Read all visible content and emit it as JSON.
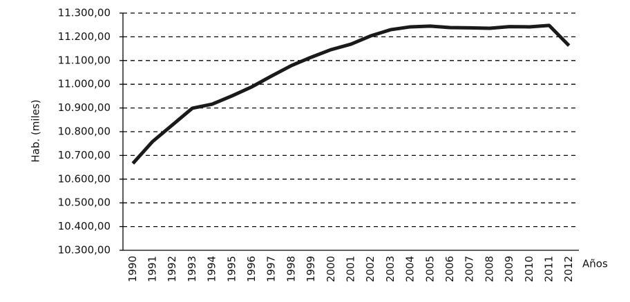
{
  "chart_data": {
    "type": "line",
    "y_label": "Hab. (miles)",
    "x_label": "Años",
    "categories": [
      "1990",
      "1991",
      "1992",
      "1993",
      "1994",
      "1995",
      "1996",
      "1997",
      "1998",
      "1999",
      "2000",
      "2001",
      "2002",
      "2003",
      "2004",
      "2005",
      "2006",
      "2007",
      "2008",
      "2009",
      "2010",
      "2011",
      "2012"
    ],
    "series": [
      {
        "color": "#1a1a1a",
        "values": [
          10666,
          10759,
          10829,
          10899,
          10916,
          10951,
          10989,
          11035,
          11079,
          11114,
          11146,
          11169,
          11204,
          11230,
          11242,
          11245,
          11239,
          11238,
          11236,
          11243,
          11242,
          11248,
          11163
        ]
      }
    ],
    "ylim": [
      10300,
      11300
    ],
    "yticks": [
      {
        "value": 10300,
        "label": "10.300,00"
      },
      {
        "value": 10400,
        "label": "10.400,00"
      },
      {
        "value": 10500,
        "label": "10.500,00"
      },
      {
        "value": 10600,
        "label": "10.600,00"
      },
      {
        "value": 10700,
        "label": "10.700,00"
      },
      {
        "value": 10800,
        "label": "10.800,00"
      },
      {
        "value": 10900,
        "label": "10.900,00"
      },
      {
        "value": 11000,
        "label": "11.000,00"
      },
      {
        "value": 11100,
        "label": "11.100,00"
      },
      {
        "value": 11200,
        "label": "11.200,00"
      },
      {
        "value": 11300,
        "label": "11.300,00"
      }
    ],
    "grid": true
  }
}
